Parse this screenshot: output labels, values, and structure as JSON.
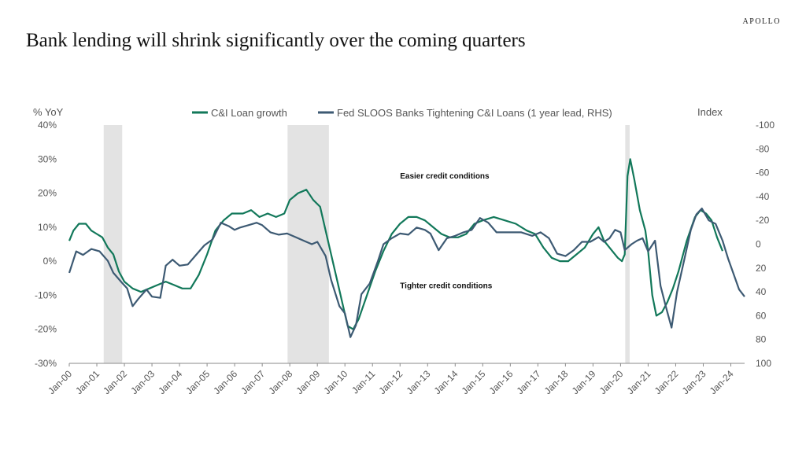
{
  "brand": "APOLLO",
  "title": "Bank lending will shrink significantly over the coming quarters",
  "chart_data": {
    "type": "line",
    "left_axis": {
      "label": "% YoY",
      "ylim": [
        -30,
        40
      ],
      "ticks": [
        40,
        30,
        20,
        10,
        0,
        -10,
        -20,
        -30
      ],
      "tick_labels": [
        "40%",
        "30%",
        "20%",
        "10%",
        "0%",
        "-10%",
        "-20%",
        "-30%"
      ]
    },
    "right_axis": {
      "label": "Index",
      "ylim": [
        100,
        -100
      ],
      "inverted": true,
      "ticks": [
        -100,
        -80,
        -60,
        -40,
        -20,
        0,
        20,
        40,
        60,
        80,
        100
      ],
      "tick_labels": [
        "-100",
        "-80",
        "-60",
        "-40",
        "-20",
        "0",
        "20",
        "40",
        "60",
        "80",
        "100"
      ]
    },
    "x_axis": {
      "range": [
        2000.0,
        2024.5
      ],
      "tick_labels": [
        "Jan-00",
        "Jan-01",
        "Jan-02",
        "Jan-03",
        "Jan-04",
        "Jan-05",
        "Jan-06",
        "Jan-07",
        "Jan-08",
        "Jan-09",
        "Jan-10",
        "Jan-11",
        "Jan-12",
        "Jan-13",
        "Jan-14",
        "Jan-15",
        "Jan-16",
        "Jan-17",
        "Jan-18",
        "Jan-19",
        "Jan-20",
        "Jan-21",
        "Jan-22",
        "Jan-23",
        "Jan-24"
      ]
    },
    "recessions": [
      [
        2001.25,
        2001.92
      ],
      [
        2007.92,
        2009.42
      ],
      [
        2020.17,
        2020.33
      ]
    ],
    "annotations": [
      {
        "text": "Easier credit conditions",
        "x": 2012.0,
        "y_right": -55
      },
      {
        "text": "Tighter credit conditions",
        "x": 2012.0,
        "y_right": 37
      }
    ],
    "series": [
      {
        "name": "C&I Loan growth",
        "axis": "left",
        "color": "#12785a",
        "points": [
          [
            2000.0,
            6
          ],
          [
            2000.15,
            9
          ],
          [
            2000.35,
            11
          ],
          [
            2000.6,
            11
          ],
          [
            2000.8,
            9
          ],
          [
            2001.0,
            8
          ],
          [
            2001.2,
            7
          ],
          [
            2001.4,
            4
          ],
          [
            2001.6,
            2
          ],
          [
            2001.8,
            -3
          ],
          [
            2002.0,
            -6
          ],
          [
            2002.3,
            -8
          ],
          [
            2002.6,
            -9
          ],
          [
            2002.9,
            -8
          ],
          [
            2003.2,
            -7
          ],
          [
            2003.5,
            -6
          ],
          [
            2003.8,
            -7
          ],
          [
            2004.1,
            -8
          ],
          [
            2004.4,
            -8
          ],
          [
            2004.7,
            -4
          ],
          [
            2005.0,
            2
          ],
          [
            2005.3,
            9
          ],
          [
            2005.6,
            12
          ],
          [
            2005.9,
            14
          ],
          [
            2006.3,
            14
          ],
          [
            2006.6,
            15
          ],
          [
            2006.9,
            13
          ],
          [
            2007.2,
            14
          ],
          [
            2007.5,
            13
          ],
          [
            2007.8,
            14
          ],
          [
            2008.0,
            18
          ],
          [
            2008.3,
            20
          ],
          [
            2008.6,
            21
          ],
          [
            2008.85,
            18
          ],
          [
            2009.1,
            16
          ],
          [
            2009.3,
            9
          ],
          [
            2009.5,
            2
          ],
          [
            2009.7,
            -5
          ],
          [
            2009.9,
            -12
          ],
          [
            2010.1,
            -19
          ],
          [
            2010.3,
            -20
          ],
          [
            2010.5,
            -17
          ],
          [
            2010.8,
            -10
          ],
          [
            2011.1,
            -3
          ],
          [
            2011.4,
            3
          ],
          [
            2011.7,
            8
          ],
          [
            2012.0,
            11
          ],
          [
            2012.3,
            13
          ],
          [
            2012.6,
            13
          ],
          [
            2012.9,
            12
          ],
          [
            2013.2,
            10
          ],
          [
            2013.5,
            8
          ],
          [
            2013.8,
            7
          ],
          [
            2014.1,
            7
          ],
          [
            2014.4,
            8
          ],
          [
            2014.7,
            11
          ],
          [
            2015.0,
            12
          ],
          [
            2015.4,
            13
          ],
          [
            2015.8,
            12
          ],
          [
            2016.2,
            11
          ],
          [
            2016.6,
            9
          ],
          [
            2016.9,
            8
          ],
          [
            2017.2,
            4
          ],
          [
            2017.5,
            1
          ],
          [
            2017.8,
            0
          ],
          [
            2018.1,
            0
          ],
          [
            2018.4,
            2
          ],
          [
            2018.7,
            4
          ],
          [
            2019.0,
            8
          ],
          [
            2019.2,
            10
          ],
          [
            2019.4,
            6
          ],
          [
            2019.7,
            3
          ],
          [
            2019.9,
            1
          ],
          [
            2020.05,
            0
          ],
          [
            2020.15,
            2
          ],
          [
            2020.25,
            25
          ],
          [
            2020.35,
            30
          ],
          [
            2020.5,
            24
          ],
          [
            2020.7,
            15
          ],
          [
            2020.9,
            9
          ],
          [
            2021.0,
            3
          ],
          [
            2021.15,
            -10
          ],
          [
            2021.3,
            -16
          ],
          [
            2021.5,
            -15
          ],
          [
            2021.7,
            -12
          ],
          [
            2021.9,
            -8
          ],
          [
            2022.1,
            -3
          ],
          [
            2022.4,
            6
          ],
          [
            2022.7,
            13
          ],
          [
            2022.9,
            15
          ],
          [
            2023.1,
            14
          ],
          [
            2023.3,
            12
          ],
          [
            2023.5,
            7
          ],
          [
            2023.7,
            3
          ]
        ]
      },
      {
        "name": "Fed SLOOS Banks Tightening C&I Loans (1 year lead, RHS)",
        "axis": "right",
        "color": "#3d5a73",
        "points": [
          [
            2000.0,
            24
          ],
          [
            2000.25,
            6
          ],
          [
            2000.5,
            9
          ],
          [
            2000.8,
            4
          ],
          [
            2001.1,
            6
          ],
          [
            2001.4,
            14
          ],
          [
            2001.6,
            24
          ],
          [
            2001.9,
            32
          ],
          [
            2002.1,
            37
          ],
          [
            2002.3,
            52
          ],
          [
            2002.5,
            46
          ],
          [
            2002.8,
            38
          ],
          [
            2003.0,
            44
          ],
          [
            2003.3,
            45
          ],
          [
            2003.5,
            18
          ],
          [
            2003.75,
            13
          ],
          [
            2004.0,
            18
          ],
          [
            2004.3,
            17
          ],
          [
            2004.6,
            9
          ],
          [
            2004.9,
            1
          ],
          [
            2005.2,
            -4
          ],
          [
            2005.5,
            -18
          ],
          [
            2005.8,
            -15
          ],
          [
            2006.0,
            -12
          ],
          [
            2006.2,
            -14
          ],
          [
            2006.5,
            -16
          ],
          [
            2006.8,
            -18
          ],
          [
            2007.0,
            -16
          ],
          [
            2007.3,
            -10
          ],
          [
            2007.6,
            -8
          ],
          [
            2007.9,
            -9
          ],
          [
            2008.2,
            -6
          ],
          [
            2008.5,
            -3
          ],
          [
            2008.8,
            0
          ],
          [
            2009.0,
            -2
          ],
          [
            2009.3,
            10
          ],
          [
            2009.5,
            30
          ],
          [
            2009.8,
            52
          ],
          [
            2010.0,
            58
          ],
          [
            2010.2,
            78
          ],
          [
            2010.4,
            68
          ],
          [
            2010.6,
            42
          ],
          [
            2010.9,
            33
          ],
          [
            2011.2,
            14
          ],
          [
            2011.4,
            0
          ],
          [
            2011.7,
            -5
          ],
          [
            2012.0,
            -9
          ],
          [
            2012.3,
            -8
          ],
          [
            2012.6,
            -14
          ],
          [
            2012.9,
            -12
          ],
          [
            2013.1,
            -9
          ],
          [
            2013.4,
            5
          ],
          [
            2013.7,
            -5
          ],
          [
            2014.0,
            -7
          ],
          [
            2014.3,
            -10
          ],
          [
            2014.6,
            -12
          ],
          [
            2014.9,
            -22
          ],
          [
            2015.2,
            -18
          ],
          [
            2015.5,
            -10
          ],
          [
            2015.8,
            -10
          ],
          [
            2016.1,
            -10
          ],
          [
            2016.4,
            -10
          ],
          [
            2016.8,
            -7
          ],
          [
            2017.1,
            -10
          ],
          [
            2017.4,
            -5
          ],
          [
            2017.7,
            8
          ],
          [
            2018.0,
            10
          ],
          [
            2018.3,
            5
          ],
          [
            2018.6,
            -2
          ],
          [
            2018.9,
            -2
          ],
          [
            2019.2,
            -6
          ],
          [
            2019.4,
            -2
          ],
          [
            2019.6,
            -5
          ],
          [
            2019.8,
            -12
          ],
          [
            2020.0,
            -10
          ],
          [
            2020.15,
            5
          ],
          [
            2020.4,
            0
          ],
          [
            2020.6,
            -3
          ],
          [
            2020.8,
            -5
          ],
          [
            2021.0,
            6
          ],
          [
            2021.25,
            -3
          ],
          [
            2021.45,
            35
          ],
          [
            2021.65,
            53
          ],
          [
            2021.85,
            70
          ],
          [
            2022.05,
            40
          ],
          [
            2022.3,
            14
          ],
          [
            2022.55,
            -12
          ],
          [
            2022.75,
            -25
          ],
          [
            2022.95,
            -30
          ],
          [
            2023.2,
            -20
          ],
          [
            2023.45,
            -17
          ],
          [
            2023.7,
            -3
          ],
          [
            2023.9,
            12
          ],
          [
            2024.1,
            25
          ],
          [
            2024.3,
            38
          ],
          [
            2024.5,
            44
          ]
        ]
      }
    ]
  }
}
